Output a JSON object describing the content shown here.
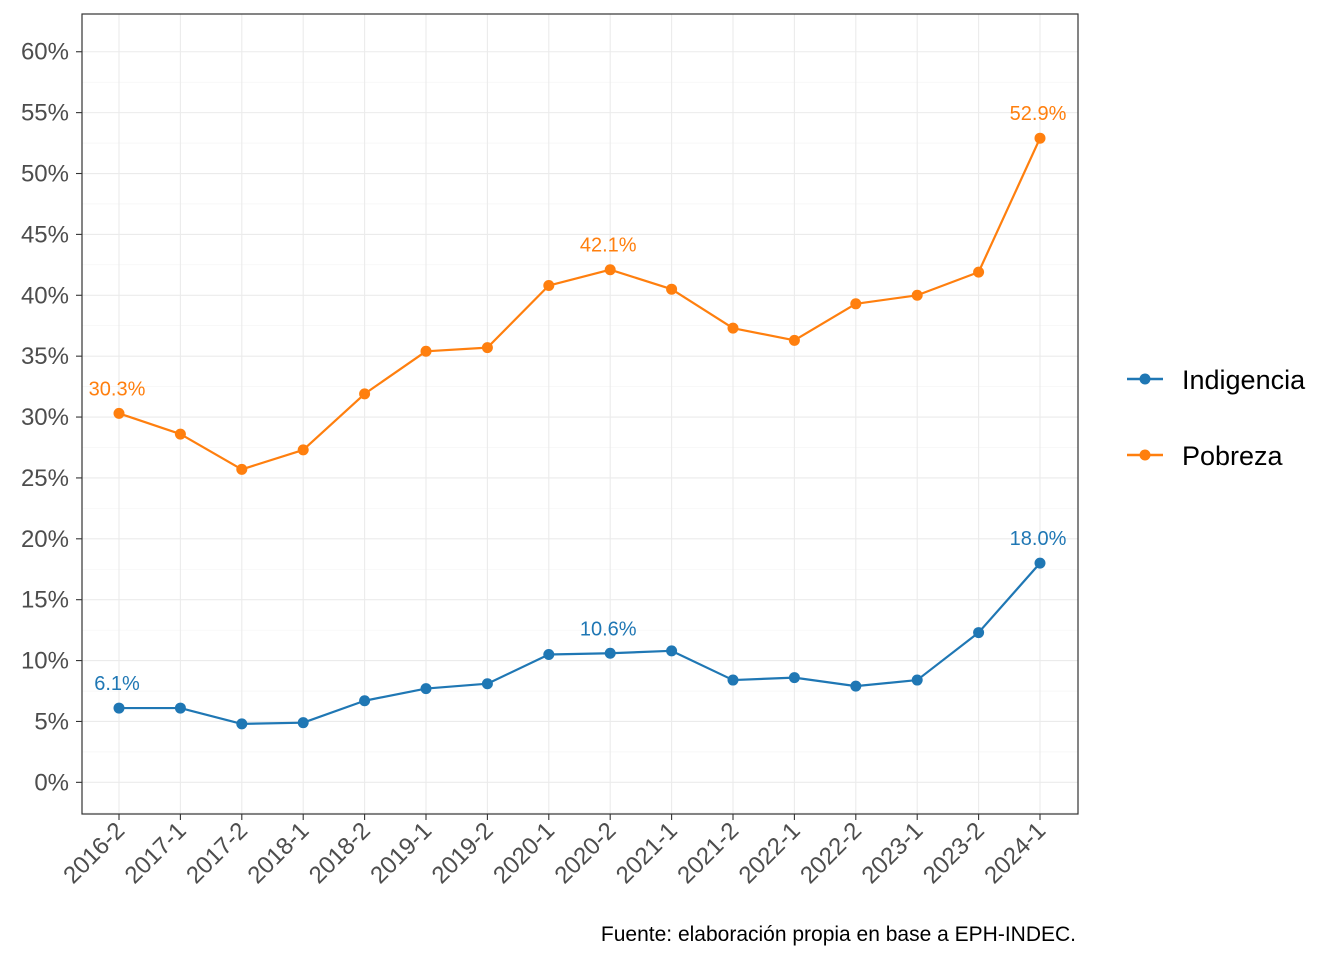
{
  "chart_data": {
    "type": "line",
    "title": "",
    "xlabel": "",
    "ylabel": "",
    "categories": [
      "2016-2",
      "2017-1",
      "2017-2",
      "2018-1",
      "2018-2",
      "2019-1",
      "2019-2",
      "2020-1",
      "2020-2",
      "2021-1",
      "2021-2",
      "2022-1",
      "2022-2",
      "2023-1",
      "2023-2",
      "2024-1"
    ],
    "y_ticks": [
      "0%",
      "5%",
      "10%",
      "15%",
      "20%",
      "25%",
      "30%",
      "35%",
      "40%",
      "45%",
      "50%",
      "55%",
      "60%"
    ],
    "ylim": [
      -2.6,
      63.1
    ],
    "grid": true,
    "legend_position": "right",
    "series": [
      {
        "name": "Indigencia",
        "color": "#1f77b4",
        "values": [
          6.1,
          6.1,
          4.8,
          4.9,
          6.7,
          7.7,
          8.1,
          10.5,
          10.6,
          10.8,
          8.4,
          8.6,
          7.9,
          8.4,
          12.3,
          18.0
        ],
        "labels": [
          {
            "index": 0,
            "text": "6.1%"
          },
          {
            "index": 8,
            "text": "10.6%"
          },
          {
            "index": 15,
            "text": "18.0%"
          }
        ]
      },
      {
        "name": "Pobreza",
        "color": "#ff7f0e",
        "values": [
          30.3,
          28.6,
          25.7,
          27.3,
          31.9,
          35.4,
          35.7,
          40.8,
          42.1,
          40.5,
          37.3,
          36.3,
          39.3,
          40.0,
          41.9,
          52.9
        ],
        "labels": [
          {
            "index": 0,
            "text": "30.3%"
          },
          {
            "index": 8,
            "text": "42.1%"
          },
          {
            "index": 15,
            "text": "52.9%"
          }
        ]
      }
    ],
    "caption": "Fuente: elaboración propia en base a EPH-INDEC."
  }
}
